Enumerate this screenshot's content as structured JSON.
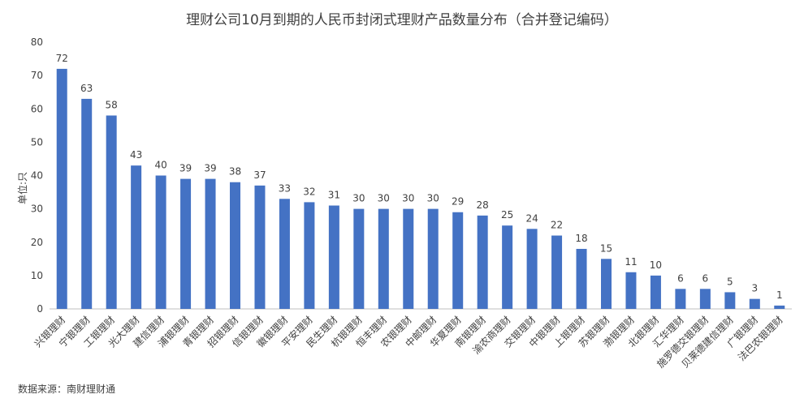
{
  "chart_data": {
    "type": "bar",
    "title": "理财公司10月到期的人民币封闭式理财产品数量分布（合并登记编码）",
    "xlabel": "",
    "ylabel": "单位:只",
    "ylim": [
      0,
      80
    ],
    "yticks": [
      0,
      10,
      20,
      30,
      40,
      50,
      60,
      70,
      80
    ],
    "grid": false,
    "legend": "none",
    "bar_color": "#4472C4",
    "categories": [
      "兴银理财",
      "宁银理财",
      "工银理财",
      "光大理财",
      "建信理财",
      "浦银理财",
      "青银理财",
      "招银理财",
      "信银理财",
      "徽银理财",
      "平安理财",
      "民生理财",
      "杭银理财",
      "恒丰理财",
      "农银理财",
      "中邮理财",
      "华夏理财",
      "南银理财",
      "渝农商理财",
      "交银理财",
      "中银理财",
      "上银理财",
      "苏银理财",
      "渤银理财",
      "北银理财",
      "汇华理财",
      "施罗德交银理财",
      "贝莱德建信理财",
      "广银理财",
      "法巴农银理财"
    ],
    "values": [
      72,
      63,
      58,
      43,
      40,
      39,
      39,
      38,
      37,
      33,
      32,
      31,
      30,
      30,
      30,
      30,
      29,
      28,
      25,
      24,
      22,
      18,
      15,
      11,
      10,
      6,
      6,
      5,
      3,
      1
    ]
  },
  "source": "数据来源：南财理财通"
}
